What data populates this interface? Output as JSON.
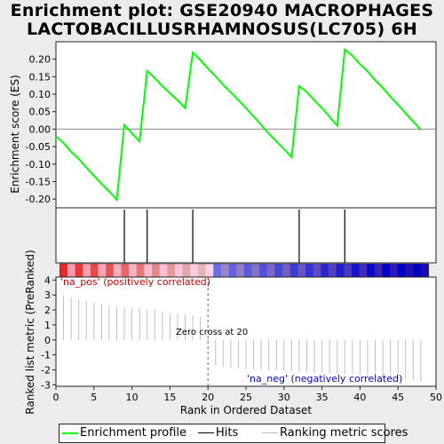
{
  "title": {
    "line1": "Enrichment plot: GSE20940 MACROPHAGES",
    "line2": "LACTOBACILLUSRHAMNOSUS(LC705) 6H"
  },
  "legend": {
    "items": [
      {
        "label": "Enrichment profile",
        "color": "#00ff00"
      },
      {
        "label": "Hits",
        "color": "#000000"
      },
      {
        "label": "Ranking metric scores",
        "color": "#c0c0c0"
      }
    ]
  },
  "labels": {
    "pos": "'na_pos' (positively correlated)",
    "neg": "'na_neg' (negatively correlated)",
    "zero_cross": "Zero cross at 20"
  },
  "chart_data": {
    "type": "line",
    "x_axis": {
      "label": "Rank in Ordered Dataset",
      "range": [
        0,
        50
      ],
      "ticks": [
        0,
        5,
        10,
        15,
        20,
        25,
        30,
        35,
        40,
        45,
        50
      ]
    },
    "es_panel": {
      "ylabel": "Enrichment score (ES)",
      "ylim": [
        -0.225,
        0.25
      ],
      "yticks": [
        -0.2,
        -0.15,
        -0.1,
        -0.05,
        0.0,
        0.05,
        0.1,
        0.15,
        0.2
      ],
      "ytick_labels": [
        "-0.20",
        "-0.15",
        "-0.10",
        "-0.05",
        "0.00",
        "0.05",
        "0.10",
        "0.15",
        "0.20"
      ],
      "series": [
        {
          "name": "Enrichment profile",
          "color": "#00ff00",
          "x": [
            0,
            1,
            2,
            3,
            4,
            5,
            6,
            7,
            8,
            9,
            10,
            11,
            12,
            13,
            14,
            15,
            16,
            17,
            18,
            19,
            20,
            21,
            22,
            23,
            24,
            25,
            26,
            27,
            28,
            29,
            30,
            31,
            32,
            33,
            34,
            35,
            36,
            37,
            38,
            39,
            40,
            41,
            42,
            43,
            44,
            45,
            46,
            47,
            48
          ],
          "y": [
            -0.02,
            -0.04,
            -0.065,
            -0.085,
            -0.11,
            -0.133,
            -0.157,
            -0.178,
            -0.202,
            0.012,
            -0.012,
            -0.035,
            0.167,
            0.146,
            0.123,
            0.103,
            0.082,
            0.06,
            0.219,
            0.198,
            0.173,
            0.151,
            0.127,
            0.105,
            0.083,
            0.06,
            0.036,
            0.012,
            -0.013,
            -0.035,
            -0.057,
            -0.08,
            0.123,
            0.106,
            0.082,
            0.06,
            0.035,
            0.01,
            0.228,
            0.21,
            0.186,
            0.165,
            0.14,
            0.118,
            0.093,
            0.07,
            0.045,
            0.022,
            -0.002
          ]
        }
      ]
    },
    "hits": [
      9,
      12,
      18,
      32,
      38
    ],
    "metric_panel": {
      "ylabel": "Ranked list metric (PreRanked)",
      "ylim": [
        -3.1,
        4.2
      ],
      "yticks": [
        -3,
        -2,
        -1,
        0,
        1,
        2,
        3,
        4
      ],
      "zero_cross": 20,
      "x": [
        1,
        2,
        3,
        4,
        5,
        6,
        7,
        8,
        9,
        10,
        11,
        12,
        13,
        14,
        15,
        16,
        17,
        18,
        19,
        20,
        21,
        22,
        23,
        24,
        25,
        26,
        27,
        28,
        29,
        30,
        31,
        32,
        33,
        34,
        35,
        36,
        37,
        38,
        39,
        40,
        41,
        42,
        43,
        44,
        45,
        46,
        47,
        48
      ],
      "values": [
        3.0,
        2.85,
        2.7,
        2.6,
        2.5,
        2.4,
        2.3,
        2.25,
        2.2,
        2.15,
        2.1,
        2.05,
        2.0,
        1.9,
        1.8,
        1.75,
        1.7,
        1.65,
        1.6,
        -0.1,
        -1.7,
        -1.8,
        -1.85,
        -1.9,
        -1.95,
        -2.0,
        -2.0,
        -2.05,
        -2.05,
        -2.1,
        -2.1,
        -2.15,
        -2.15,
        -2.2,
        -2.2,
        -2.25,
        -2.25,
        -2.3,
        -2.3,
        -2.35,
        -2.4,
        -2.45,
        -2.5,
        -2.55,
        -2.6,
        -2.65,
        -2.7,
        -2.8
      ]
    }
  }
}
